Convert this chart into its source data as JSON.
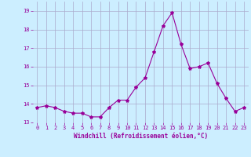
{
  "x": [
    0,
    1,
    2,
    3,
    4,
    5,
    6,
    7,
    8,
    9,
    10,
    11,
    12,
    13,
    14,
    15,
    16,
    17,
    18,
    19,
    20,
    21,
    22,
    23
  ],
  "y": [
    13.8,
    13.9,
    13.8,
    13.6,
    13.5,
    13.5,
    13.3,
    13.3,
    13.8,
    14.2,
    14.2,
    14.9,
    15.4,
    16.8,
    18.2,
    18.9,
    17.2,
    15.9,
    16.0,
    16.2,
    15.1,
    14.3,
    13.6,
    13.8
  ],
  "line_color": "#990099",
  "marker": "*",
  "marker_size": 3,
  "bg_color": "#cceeff",
  "grid_color": "#aaaacc",
  "xlabel": "Windchill (Refroidissement éolien,°C)",
  "xlabel_color": "#990099",
  "tick_color": "#990099",
  "ylim": [
    13.0,
    19.5
  ],
  "yticks": [
    13,
    14,
    15,
    16,
    17,
    18,
    19
  ],
  "xticks": [
    0,
    1,
    2,
    3,
    4,
    5,
    6,
    7,
    8,
    9,
    10,
    11,
    12,
    13,
    14,
    15,
    16,
    17,
    18,
    19,
    20,
    21,
    22,
    23
  ]
}
